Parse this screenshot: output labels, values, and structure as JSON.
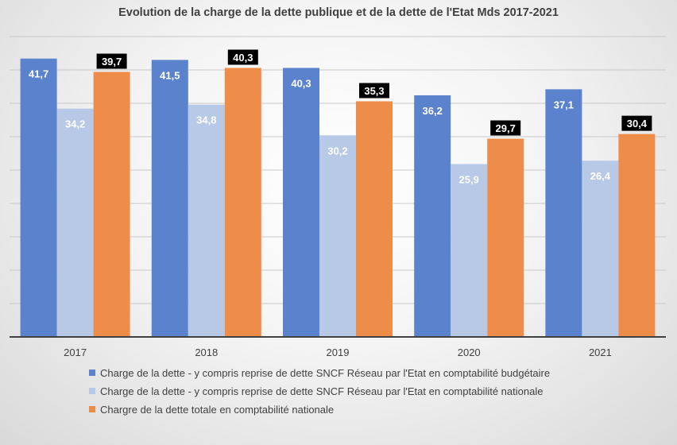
{
  "chart_data": {
    "type": "bar",
    "title": "Evolution de la charge de la dette publique et de la dette de l'Etat Mds  2017-2021",
    "xlabel": "",
    "ylabel": "",
    "categories": [
      "2017",
      "2018",
      "2019",
      "2020",
      "2021"
    ],
    "ylim": [
      0,
      45
    ],
    "grid": true,
    "legend_position": "bottom",
    "series": [
      {
        "name": "Charge de la dette - y compris reprise de dette SNCF Réseau par l'Etat en comptabilité budgétaire",
        "values": [
          41.7,
          41.5,
          40.3,
          36.2,
          37.1
        ],
        "labels": [
          "41,7",
          "41,5",
          "40,3",
          "36,2",
          "37,1"
        ],
        "color": "#5B82CC"
      },
      {
        "name": "Charge de la dette - y compris reprise de dette SNCF Réseau par l'Etat en comptabilité nationale",
        "values": [
          34.2,
          34.8,
          30.2,
          25.9,
          26.4
        ],
        "labels": [
          "34,2",
          "34,8",
          "30,2",
          "25,9",
          "26,4"
        ],
        "color": "#B7C9E6"
      },
      {
        "name": "Chargre de la dette totale en comptabilité nationale",
        "values": [
          39.7,
          40.3,
          35.3,
          29.7,
          30.4
        ],
        "labels": [
          "39,7",
          "40,3",
          "35,3",
          "29,7",
          "30,4"
        ],
        "color": "#EE8C4A"
      }
    ]
  }
}
